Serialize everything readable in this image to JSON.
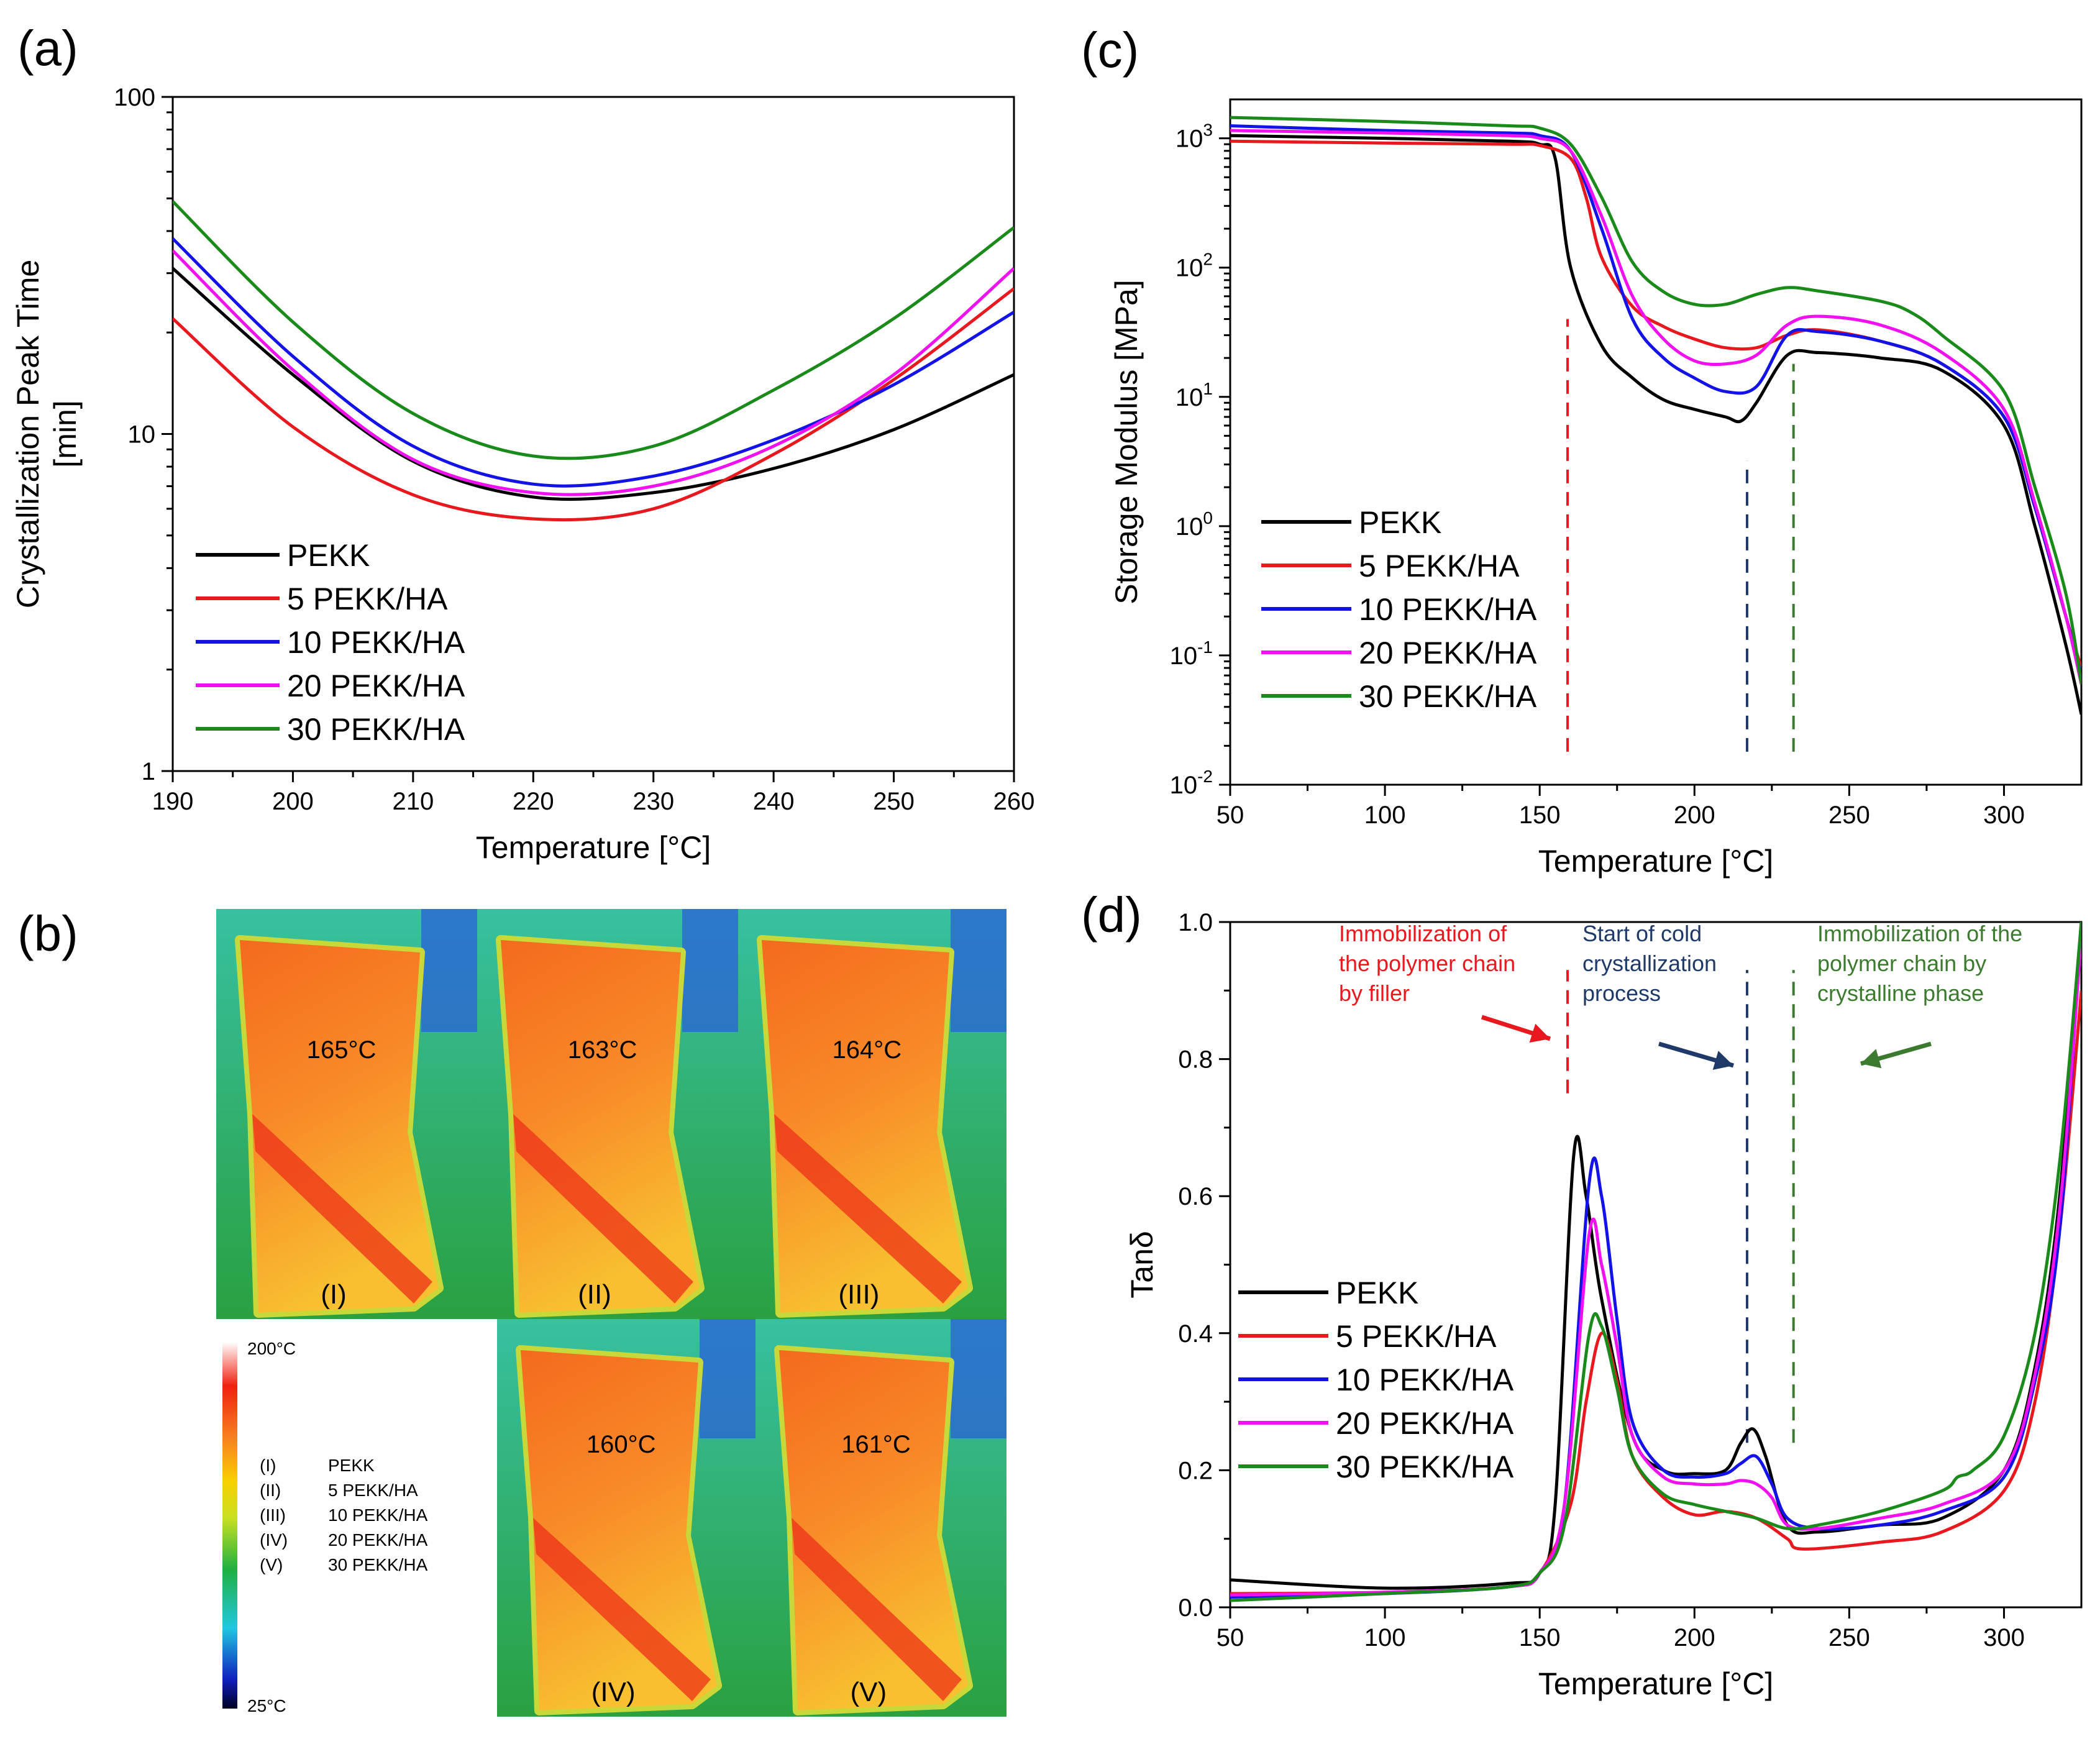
{
  "panels": {
    "a": "(a)",
    "b": "(b)",
    "c": "(c)",
    "d": "(d)"
  },
  "series_names": [
    "PEKK",
    "5 PEKK/HA",
    "10 PEKK/HA",
    "20 PEKK/HA",
    "30 PEKK/HA"
  ],
  "colors": [
    "#000000",
    "#e8191e",
    "#1313e8",
    "#f010f0",
    "#1a8a1a"
  ],
  "annotation_colors": {
    "red": "#e8191e",
    "navy": "#1f3a68",
    "green": "#3c7a30"
  },
  "chart_data": [
    {
      "id": "a",
      "type": "line",
      "title": "",
      "xlabel": "Temperature [°C]",
      "ylabel": "Crystallization Peak Time [min]",
      "yscale": "log",
      "xlim": [
        190,
        260
      ],
      "ylim": [
        1,
        100
      ],
      "xticks": [
        "190",
        "200",
        "210",
        "220",
        "230",
        "240",
        "250",
        "260"
      ],
      "yticks": [
        "1",
        "10",
        "100"
      ],
      "legend": "bottom-left",
      "series": [
        {
          "name": "PEKK",
          "x": [
            190,
            200,
            210,
            220,
            230,
            240,
            250,
            260
          ],
          "y": [
            31,
            15,
            8.3,
            6.5,
            6.7,
            7.9,
            10.3,
            15
          ]
        },
        {
          "name": "5 PEKK/HA",
          "x": [
            190,
            200,
            210,
            220,
            230,
            240,
            250,
            260
          ],
          "y": [
            22,
            10.5,
            6.6,
            5.6,
            6.0,
            8.7,
            14.5,
            27
          ]
        },
        {
          "name": "10 PEKK/HA",
          "x": [
            190,
            200,
            210,
            220,
            230,
            240,
            250,
            260
          ],
          "y": [
            38,
            17,
            9.2,
            7.1,
            7.5,
            9.6,
            14,
            23
          ]
        },
        {
          "name": "20 PEKK/HA",
          "x": [
            190,
            200,
            210,
            220,
            230,
            240,
            250,
            260
          ],
          "y": [
            35,
            15.5,
            8.4,
            6.7,
            7.0,
            9.2,
            15,
            31
          ]
        },
        {
          "name": "30 PEKK/HA",
          "x": [
            190,
            200,
            210,
            220,
            230,
            240,
            250,
            260
          ],
          "y": [
            49,
            21.5,
            11.5,
            8.6,
            9.2,
            13.5,
            22,
            41
          ]
        }
      ]
    },
    {
      "id": "c",
      "type": "line",
      "title": "",
      "xlabel": "Temperature [°C]",
      "ylabel": "Storage Modulus [MPa]",
      "yscale": "log",
      "xlim": [
        50,
        325
      ],
      "ylim": [
        0.01,
        2000
      ],
      "xticks": [
        "50",
        "100",
        "150",
        "200",
        "250",
        "300"
      ],
      "yticks_exp": [
        "-2",
        "-1",
        "0",
        "1",
        "2",
        "3"
      ],
      "ytick_base": "10",
      "vlines": [
        159,
        217,
        232
      ],
      "legend": "middle-left",
      "series": [
        {
          "name": "PEKK",
          "x": [
            50,
            100,
            140,
            150,
            155,
            160,
            170,
            180,
            190,
            200,
            210,
            215,
            220,
            230,
            240,
            260,
            280,
            300,
            310,
            320,
            325
          ],
          "y": [
            1050,
            1000,
            950,
            900,
            700,
            100,
            25,
            14,
            9.5,
            8,
            7,
            6.5,
            9,
            21,
            22,
            20,
            16,
            6,
            1,
            0.12,
            0.035
          ]
        },
        {
          "name": "5 PEKK/HA",
          "x": [
            50,
            100,
            140,
            150,
            160,
            165,
            170,
            180,
            190,
            200,
            210,
            220,
            230,
            240,
            260,
            280,
            300,
            310,
            320,
            325
          ],
          "y": [
            950,
            920,
            900,
            880,
            700,
            350,
            120,
            50,
            35,
            28,
            24,
            24,
            30,
            33,
            27,
            18,
            7,
            1.4,
            0.2,
            0.08
          ]
        },
        {
          "name": "10 PEKK/HA",
          "x": [
            50,
            100,
            140,
            150,
            160,
            170,
            180,
            190,
            200,
            210,
            220,
            230,
            240,
            260,
            280,
            300,
            310,
            320,
            325
          ],
          "y": [
            1250,
            1150,
            1100,
            1050,
            800,
            200,
            40,
            20,
            14,
            11,
            12,
            30,
            32,
            27,
            18,
            7,
            1.4,
            0.2,
            0.07
          ]
        },
        {
          "name": "20 PEKK/HA",
          "x": [
            50,
            100,
            140,
            150,
            160,
            170,
            180,
            190,
            200,
            210,
            220,
            230,
            240,
            260,
            280,
            300,
            310,
            320,
            325
          ],
          "y": [
            1150,
            1100,
            1050,
            1000,
            800,
            250,
            60,
            28,
            19,
            18,
            21,
            36,
            42,
            36,
            22,
            8,
            1.5,
            0.2,
            0.06
          ]
        },
        {
          "name": "30 PEKK/HA",
          "x": [
            50,
            100,
            140,
            150,
            160,
            170,
            180,
            190,
            200,
            210,
            220,
            230,
            240,
            260,
            270,
            280,
            300,
            310,
            320,
            325
          ],
          "y": [
            1450,
            1350,
            1250,
            1200,
            900,
            350,
            110,
            65,
            52,
            52,
            62,
            70,
            66,
            55,
            45,
            30,
            11,
            2,
            0.3,
            0.06
          ]
        }
      ]
    },
    {
      "id": "d",
      "type": "line",
      "title": "",
      "xlabel": "Temperature [°C]",
      "ylabel": "Tanδ",
      "xlim": [
        50,
        325
      ],
      "ylim": [
        0,
        1
      ],
      "xticks": [
        "50",
        "100",
        "150",
        "200",
        "250",
        "300"
      ],
      "yticks": [
        "0.0",
        "0.2",
        "0.4",
        "0.6",
        "0.8",
        "1.0"
      ],
      "vlines": [
        159,
        217,
        232
      ],
      "legend": "lower-left",
      "annotations": [
        "Immobilization of",
        "the polymer chain",
        "by filler",
        "Start of cold",
        "crystallization",
        "process",
        "Immobilization of the",
        "polymer chain by",
        "crystalline phase"
      ],
      "series": [
        {
          "name": "PEKK",
          "x": [
            50,
            100,
            140,
            150,
            155,
            161,
            165,
            170,
            180,
            190,
            200,
            210,
            215,
            219,
            223,
            230,
            240,
            260,
            280,
            300,
            310,
            318,
            325
          ],
          "y": [
            0.04,
            0.028,
            0.035,
            0.05,
            0.15,
            0.66,
            0.6,
            0.45,
            0.25,
            0.2,
            0.195,
            0.2,
            0.24,
            0.26,
            0.22,
            0.12,
            0.11,
            0.12,
            0.13,
            0.2,
            0.35,
            0.6,
            1.0
          ]
        },
        {
          "name": "5 PEKK/HA",
          "x": [
            50,
            100,
            140,
            150,
            160,
            165,
            170,
            175,
            180,
            190,
            200,
            210,
            220,
            230,
            235,
            260,
            280,
            300,
            310,
            318,
            325
          ],
          "y": [
            0.02,
            0.022,
            0.03,
            0.05,
            0.15,
            0.3,
            0.4,
            0.33,
            0.22,
            0.16,
            0.135,
            0.14,
            0.13,
            0.1,
            0.085,
            0.095,
            0.11,
            0.17,
            0.3,
            0.55,
            0.9
          ]
        },
        {
          "name": "10 PEKK/HA",
          "x": [
            50,
            100,
            140,
            150,
            158,
            166,
            170,
            175,
            180,
            190,
            200,
            210,
            215,
            220,
            225,
            230,
            240,
            260,
            280,
            300,
            310,
            318,
            325
          ],
          "y": [
            0.015,
            0.02,
            0.03,
            0.05,
            0.15,
            0.62,
            0.6,
            0.42,
            0.27,
            0.2,
            0.19,
            0.195,
            0.21,
            0.22,
            0.18,
            0.13,
            0.115,
            0.12,
            0.14,
            0.19,
            0.33,
            0.55,
            1.0
          ]
        },
        {
          "name": "20 PEKK/HA",
          "x": [
            50,
            100,
            140,
            150,
            158,
            166,
            170,
            175,
            180,
            190,
            200,
            210,
            215,
            220,
            225,
            230,
            240,
            260,
            280,
            300,
            310,
            318,
            325
          ],
          "y": [
            0.018,
            0.022,
            0.03,
            0.05,
            0.15,
            0.545,
            0.5,
            0.38,
            0.25,
            0.19,
            0.18,
            0.18,
            0.185,
            0.18,
            0.16,
            0.12,
            0.115,
            0.13,
            0.15,
            0.2,
            0.34,
            0.58,
            0.98
          ]
        },
        {
          "name": "30 PEKK/HA",
          "x": [
            50,
            100,
            140,
            150,
            158,
            166,
            170,
            175,
            180,
            190,
            200,
            210,
            220,
            230,
            240,
            260,
            280,
            285,
            290,
            300,
            310,
            318,
            325
          ],
          "y": [
            0.01,
            0.02,
            0.03,
            0.05,
            0.12,
            0.4,
            0.41,
            0.32,
            0.22,
            0.165,
            0.15,
            0.14,
            0.13,
            0.115,
            0.12,
            0.14,
            0.17,
            0.19,
            0.2,
            0.25,
            0.4,
            0.65,
            1.0
          ]
        }
      ]
    }
  ],
  "thermal": {
    "temps": [
      "165°C",
      "163°C",
      "164°C",
      "160°C",
      "161°C"
    ],
    "labels": [
      "(I)",
      "(II)",
      "(III)",
      "(IV)",
      "(V)"
    ],
    "colorbar_max": "200°C",
    "colorbar_min": "25°C",
    "key_ids": [
      "(I)",
      "(II)",
      "(III)",
      "(IV)",
      "(V)"
    ],
    "key_names": [
      "PEKK",
      "5 PEKK/HA",
      "10 PEKK/HA",
      "20 PEKK/HA",
      "30 PEKK/HA"
    ]
  }
}
